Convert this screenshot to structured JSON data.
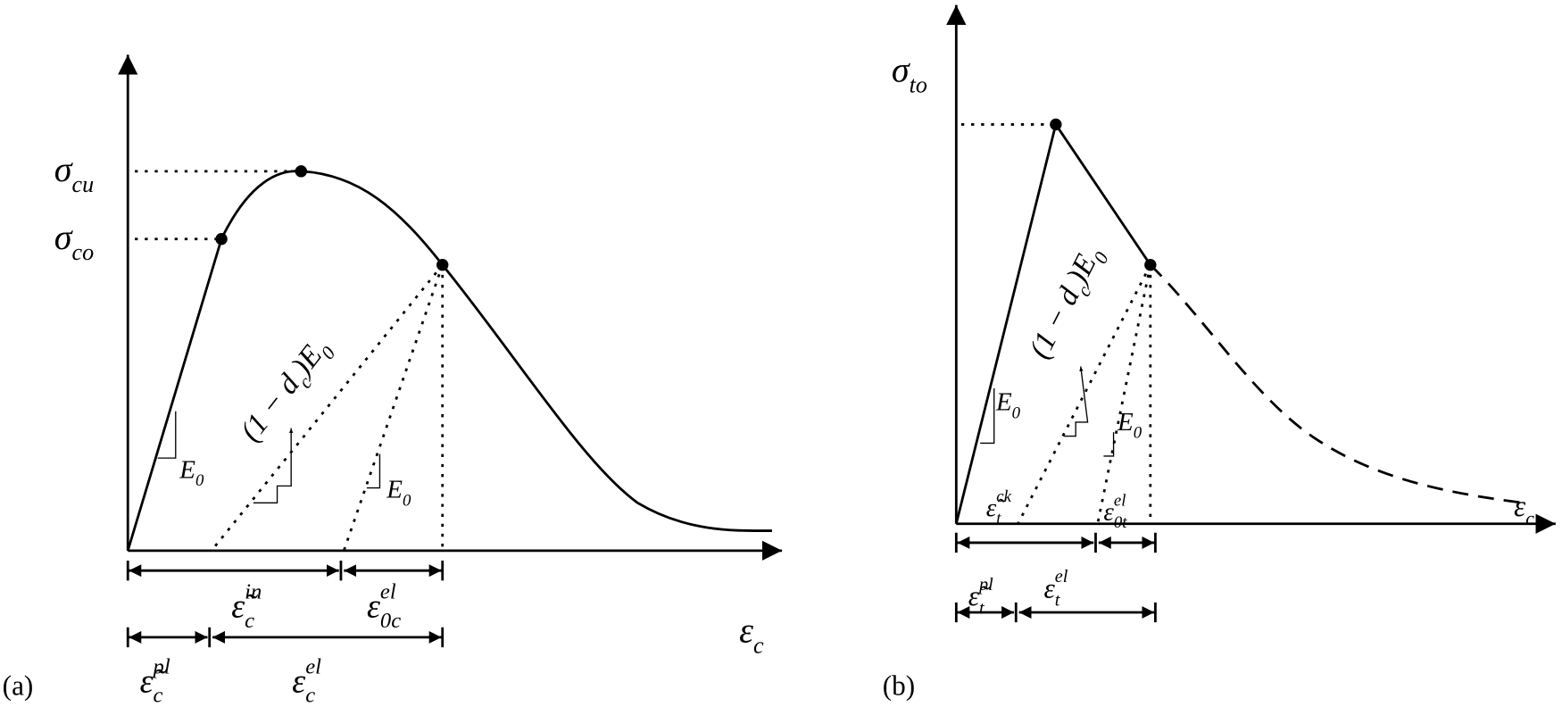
{
  "panel_a": {
    "tag": "(a)",
    "sigma_cu": [
      {
        "base": "σ",
        "sub": "cu"
      }
    ],
    "sigma_co": [
      {
        "base": "σ",
        "sub": "co"
      }
    ],
    "x_axis": [
      {
        "base": "ε",
        "sub": "c"
      }
    ],
    "slope_e0": [
      {
        "base": "E",
        "sub": "0"
      }
    ],
    "damaged_slope": [
      {
        "base": "(1 − d",
        "sub": "c"
      },
      {
        "base": ")E",
        "sub": "0"
      }
    ],
    "unload_e0": [
      {
        "base": "E",
        "sub": "0"
      }
    ],
    "inelastic": [
      {
        "base": "ε̃",
        "sub": "c",
        "sup": "in"
      }
    ],
    "elastic_0": [
      {
        "base": "ε",
        "sub": "0c",
        "sup": "el"
      }
    ],
    "plastic": [
      {
        "base": "ε̃",
        "sub": "c",
        "sup": "pl"
      }
    ],
    "elastic": [
      {
        "base": "ε",
        "sub": "c",
        "sup": "el"
      }
    ]
  },
  "panel_b": {
    "tag": "(b)",
    "sigma_to": [
      {
        "base": "σ",
        "sub": "to"
      }
    ],
    "x_axis": [
      {
        "base": "ε",
        "sub": "c"
      }
    ],
    "slope_e0": [
      {
        "base": "E",
        "sub": "0"
      }
    ],
    "damaged_slope": [
      {
        "base": "(1 − d",
        "sub": "c"
      },
      {
        "base": ")E",
        "sub": "0"
      }
    ],
    "unload_e0": [
      {
        "base": "E",
        "sub": "0"
      }
    ],
    "cracking": [
      {
        "base": "ε̃",
        "sub": "t",
        "sup": "ck"
      }
    ],
    "elastic_0": [
      {
        "base": "ε",
        "sub": "0t",
        "sup": "el"
      }
    ],
    "plastic": [
      {
        "base": "ε̃",
        "sub": "t",
        "sup": "pl"
      }
    ],
    "elastic": [
      {
        "base": "ε",
        "sub": "t",
        "sup": "el"
      }
    ]
  }
}
